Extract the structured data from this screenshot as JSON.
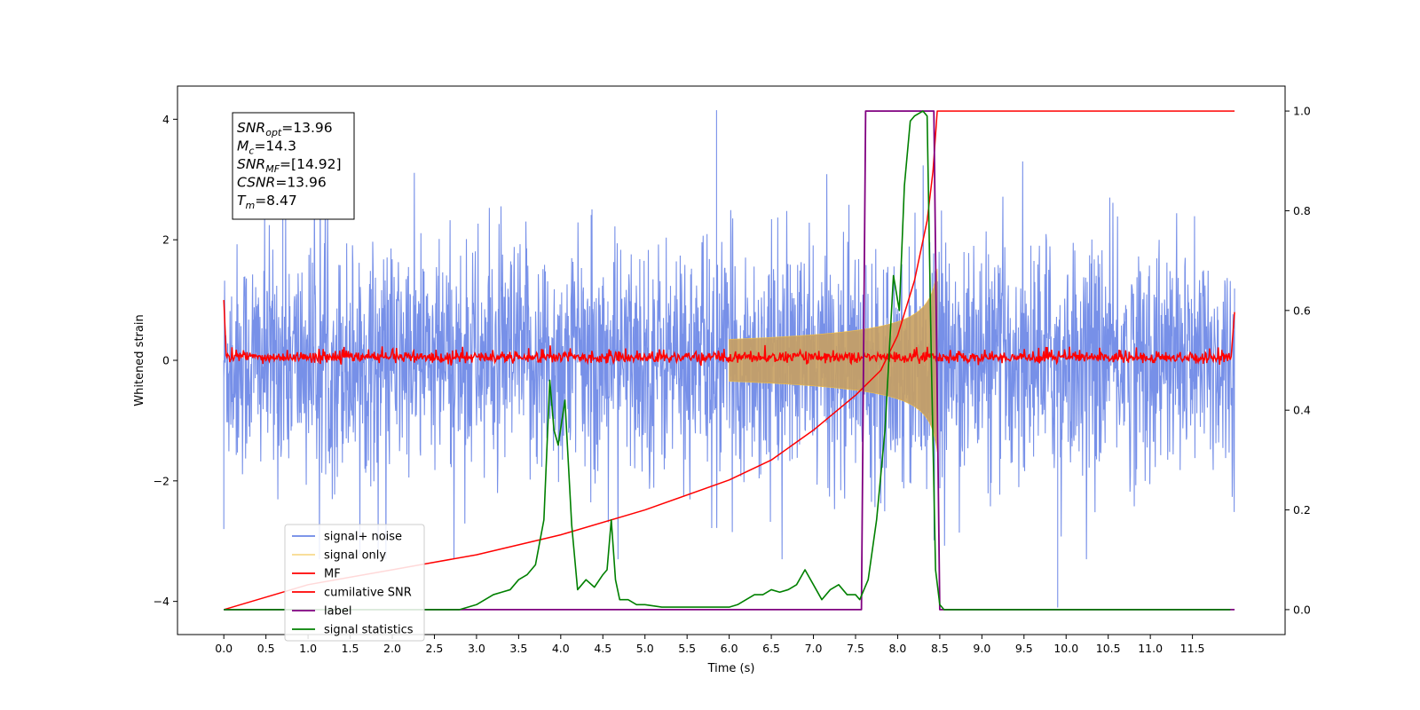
{
  "chart_data": {
    "type": "line",
    "xlabel": "Time (s)",
    "ylabel": "Whitened strain",
    "xlim": [
      -0.55,
      12.6
    ],
    "ylim": [
      -4.55,
      4.55
    ],
    "y2lim": [
      -0.05,
      1.05
    ],
    "x_ticks": [
      "0.0",
      "0.5",
      "1.0",
      "1.5",
      "2.0",
      "2.5",
      "3.0",
      "3.5",
      "4.0",
      "4.5",
      "5.0",
      "5.5",
      "6.0",
      "6.5",
      "7.0",
      "7.5",
      "8.0",
      "8.5",
      "9.0",
      "9.5",
      "10.0",
      "10.5",
      "11.0",
      "11.5"
    ],
    "y_ticks": [
      "−4",
      "−2",
      "0",
      "2",
      "4"
    ],
    "y2_ticks": [
      "0.0",
      "0.2",
      "0.4",
      "0.6",
      "0.8",
      "1.0"
    ],
    "annotation": [
      {
        "sym": "SNR",
        "sub": "opt",
        "value": "=13.96"
      },
      {
        "sym": "M",
        "sub": "c",
        "value": "=14.3"
      },
      {
        "sym": "SNR",
        "sub": "MF",
        "value": "=[14.92]"
      },
      {
        "sym": "CSNR",
        "sub": "",
        "value": "=13.96"
      },
      {
        "sym": "T",
        "sub": "m",
        "value": "=8.47"
      }
    ],
    "legend_position": "lower-left",
    "colors": {
      "noise": "#6b87e6",
      "signal": "#f5c242",
      "mf": "#ff0000",
      "csnr": "#ff0000",
      "label": "#800080",
      "stats": "#008000"
    },
    "series": [
      {
        "name": "signal+ noise",
        "axis": "left",
        "kind": "noise",
        "x_range": [
          0,
          12
        ],
        "envelope": [
          -2.4,
          2.4
        ],
        "spikes": [
          [
            5.85,
            4.15
          ],
          [
            9.9,
            -4.1
          ],
          [
            0.0,
            -2.8
          ],
          [
            0.7,
            2.9
          ]
        ]
      },
      {
        "name": "signal only",
        "axis": "left",
        "kind": "chirp",
        "coalescence": 8.47,
        "start": 6.0
      },
      {
        "name": "MF",
        "axis": "left",
        "kind": "mf",
        "x_range": [
          0,
          12
        ],
        "level": 0.05
      },
      {
        "name": "cumilative SNR",
        "axis": "right",
        "x": [
          0,
          1,
          2,
          3,
          4,
          5,
          6,
          6.5,
          7,
          7.5,
          7.8,
          8.0,
          8.2,
          8.35,
          8.42,
          8.47,
          8.5,
          12
        ],
        "values": [
          0.0,
          0.05,
          0.08,
          0.11,
          0.15,
          0.2,
          0.26,
          0.3,
          0.36,
          0.43,
          0.48,
          0.55,
          0.66,
          0.78,
          0.88,
          1.0,
          1.0,
          1.0
        ]
      },
      {
        "name": "label",
        "axis": "right",
        "x": [
          0,
          7.57,
          7.62,
          8.43,
          8.5,
          12
        ],
        "values": [
          0,
          0,
          1,
          1,
          0,
          0
        ]
      },
      {
        "name": "signal statistics",
        "axis": "right",
        "x": [
          0,
          0.5,
          1,
          1.5,
          2,
          2.5,
          2.8,
          3.0,
          3.1,
          3.2,
          3.3,
          3.4,
          3.5,
          3.6,
          3.7,
          3.8,
          3.87,
          3.92,
          3.97,
          4.05,
          4.13,
          4.2,
          4.3,
          4.4,
          4.5,
          4.55,
          4.6,
          4.65,
          4.7,
          4.8,
          4.9,
          5.0,
          5.2,
          5.5,
          6.0,
          6.1,
          6.2,
          6.3,
          6.4,
          6.5,
          6.6,
          6.7,
          6.8,
          6.9,
          7.0,
          7.1,
          7.2,
          7.3,
          7.4,
          7.5,
          7.55,
          7.65,
          7.75,
          7.85,
          7.95,
          8.02,
          8.08,
          8.15,
          8.2,
          8.25,
          8.3,
          8.35,
          8.4,
          8.45,
          8.5,
          8.55,
          9,
          10,
          11,
          11.95
        ],
        "values": [
          0.0,
          0.0,
          0.0,
          0.0,
          0.0,
          0.0,
          0.0,
          0.01,
          0.02,
          0.03,
          0.035,
          0.04,
          0.06,
          0.07,
          0.09,
          0.18,
          0.46,
          0.36,
          0.33,
          0.42,
          0.17,
          0.04,
          0.06,
          0.045,
          0.07,
          0.08,
          0.18,
          0.06,
          0.02,
          0.02,
          0.01,
          0.01,
          0.005,
          0.005,
          0.005,
          0.01,
          0.02,
          0.03,
          0.03,
          0.04,
          0.035,
          0.04,
          0.05,
          0.08,
          0.05,
          0.02,
          0.04,
          0.05,
          0.03,
          0.03,
          0.02,
          0.06,
          0.18,
          0.36,
          0.67,
          0.6,
          0.85,
          0.98,
          0.99,
          0.995,
          1.0,
          0.99,
          0.5,
          0.08,
          0.01,
          0.0,
          0.0,
          0.0,
          0.0,
          0.0
        ]
      }
    ]
  }
}
